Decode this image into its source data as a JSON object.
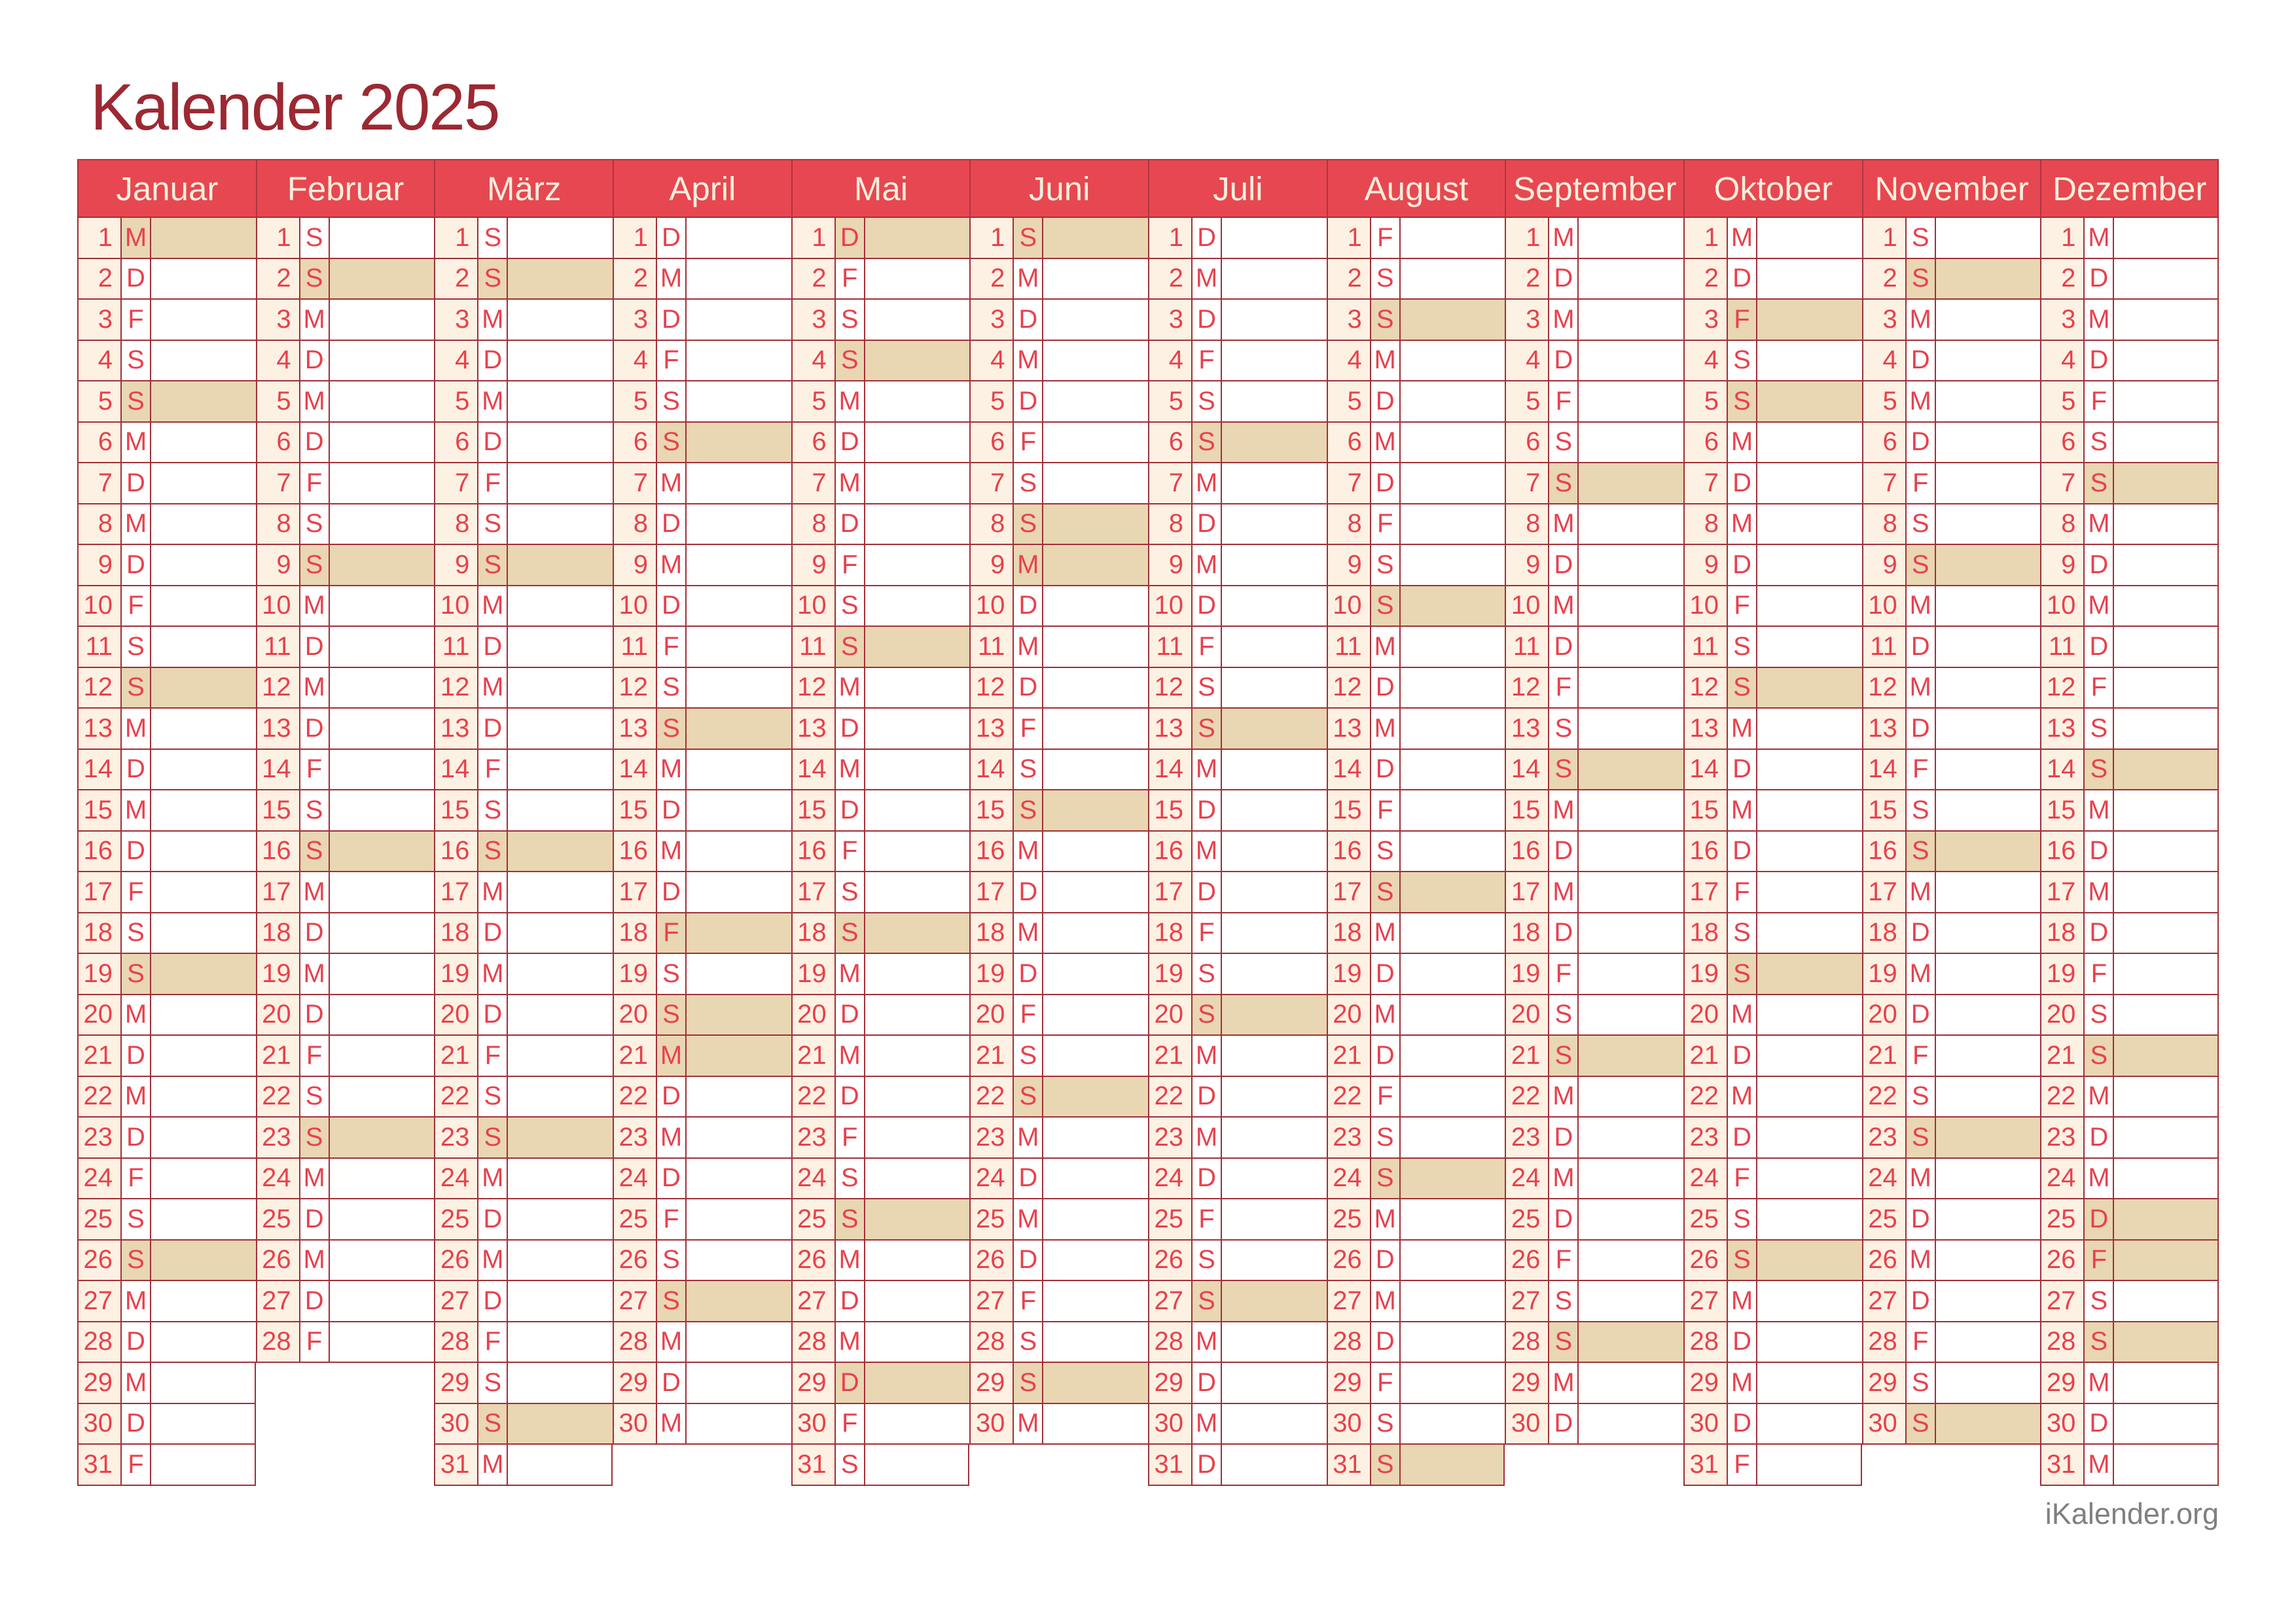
{
  "page": {
    "title": "Kalender 2025",
    "footer": "iKalender.org"
  },
  "colors": {
    "header_red": "#e74751",
    "day_red": "#e8414d",
    "cream": "#fcf1e2",
    "wheat": "#e9d6b2",
    "border_maroon": "#a03038",
    "header_sep": "#b0353f",
    "header_text": "#f8efdc",
    "title_maroon": "#9c2832",
    "footer_gray": "#808080"
  },
  "calendar": {
    "year": "2025",
    "months": [
      {
        "name": "Januar",
        "letters": "MDFSSMDMDFSSMDMDFSSMDMDFSSMDMDF",
        "highlighted_days": [
          1,
          5,
          12,
          19,
          26
        ]
      },
      {
        "name": "Februar",
        "letters": "SSMDMDFSSMDMDFSSMDMDFSSMDMDF",
        "highlighted_days": [
          2,
          9,
          16,
          23
        ]
      },
      {
        "name": "März",
        "letters": "SSMDMDFSSMDMDFSSMDMDFSSMDMDFSSM",
        "highlighted_days": [
          2,
          9,
          16,
          23,
          30
        ]
      },
      {
        "name": "April",
        "letters": "DMDFSSMDMDFSSMDMDFSSMDMDFSSMDM",
        "highlighted_days": [
          6,
          13,
          18,
          20,
          21,
          27
        ]
      },
      {
        "name": "Mai",
        "letters": "DFSSMDMDFSSMDMDFSSMDMDFSSMDMDFS",
        "highlighted_days": [
          1,
          4,
          11,
          18,
          25,
          29
        ]
      },
      {
        "name": "Juni",
        "letters": "SMDMDFSSMDMDFSSMDMDFSSMDMDFSSM",
        "highlighted_days": [
          1,
          8,
          9,
          15,
          22,
          29
        ]
      },
      {
        "name": "Juli",
        "letters": "DMDFSSMDMDFSSMDMDFSSMDMDFSSMDMD",
        "highlighted_days": [
          6,
          13,
          20,
          27
        ]
      },
      {
        "name": "August",
        "letters": "FSSMDMDFSSMDMDFSSMDMDFSSMDMDFSS",
        "highlighted_days": [
          3,
          10,
          17,
          24,
          31
        ]
      },
      {
        "name": "September",
        "letters": "MDMDFSSMDMDFSSMDMDFSSMDMDFSSMD",
        "highlighted_days": [
          7,
          14,
          21,
          28
        ]
      },
      {
        "name": "Oktober",
        "letters": "MDFSSMDMDFSSMDMDFSSMDMDFSSMDMDF",
        "highlighted_days": [
          3,
          5,
          12,
          19,
          26
        ]
      },
      {
        "name": "November",
        "letters": "SSMDMDFSSMDMDFSSMDMDFSSMDMDFSS",
        "highlighted_days": [
          2,
          9,
          16,
          23,
          30
        ]
      },
      {
        "name": "Dezember",
        "letters": "MDMDFSSMDMDFSSMDMDFSSMDMDFSSMDM",
        "highlighted_days": [
          7,
          14,
          21,
          25,
          26,
          28
        ]
      }
    ]
  }
}
